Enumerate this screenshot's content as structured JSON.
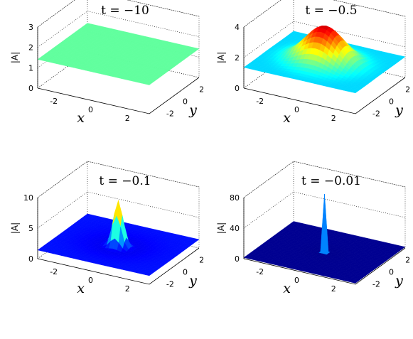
{
  "chart_data": [
    {
      "type": "surface",
      "title": "t = −10",
      "xlabel": "x",
      "ylabel": "y",
      "zlabel": "|A|",
      "x_ticks": [
        "-2",
        "0",
        "2"
      ],
      "y_ticks": [
        "2",
        "0",
        "-2"
      ],
      "z_ticks": [
        "0",
        "1",
        "2",
        "3"
      ],
      "zlim": [
        0,
        3
      ],
      "surface": {
        "base": 1.41,
        "peak": 0,
        "width": 1.0
      },
      "colormap": "jet",
      "grid": true
    },
    {
      "type": "surface",
      "title": "t = −0.5",
      "xlabel": "x",
      "ylabel": "y",
      "zlabel": "|A|",
      "x_ticks": [
        "-2",
        "0",
        "2"
      ],
      "y_ticks": [
        "2",
        "0",
        "-2"
      ],
      "z_ticks": [
        "0",
        "2",
        "4"
      ],
      "zlim": [
        0,
        4
      ],
      "surface": {
        "base": 1.41,
        "peak": 3.8,
        "width": 1.0
      },
      "colormap": "jet",
      "grid": true
    },
    {
      "type": "surface",
      "title": "t = −0.1",
      "xlabel": "x",
      "ylabel": "y",
      "zlabel": "|A|",
      "x_ticks": [
        "-2",
        "0",
        "2"
      ],
      "y_ticks": [
        "2",
        "0",
        "-2"
      ],
      "z_ticks": [
        "0",
        "5",
        "10"
      ],
      "zlim": [
        0,
        10
      ],
      "surface": {
        "base": 1.41,
        "peak": 9.0,
        "width": 0.25
      },
      "colormap": "jet",
      "grid": true
    },
    {
      "type": "surface",
      "title": "t = −0.01",
      "xlabel": "x",
      "ylabel": "y",
      "zlabel": "|A|",
      "x_ticks": [
        "-2",
        "0",
        "2"
      ],
      "y_ticks": [
        "2",
        "0",
        "-2"
      ],
      "z_ticks": [
        "0",
        "40",
        "80"
      ],
      "zlim": [
        0,
        80
      ],
      "surface": {
        "base": 1.41,
        "peak": 78,
        "width": 0.06
      },
      "colormap": "jet",
      "grid": true
    }
  ]
}
